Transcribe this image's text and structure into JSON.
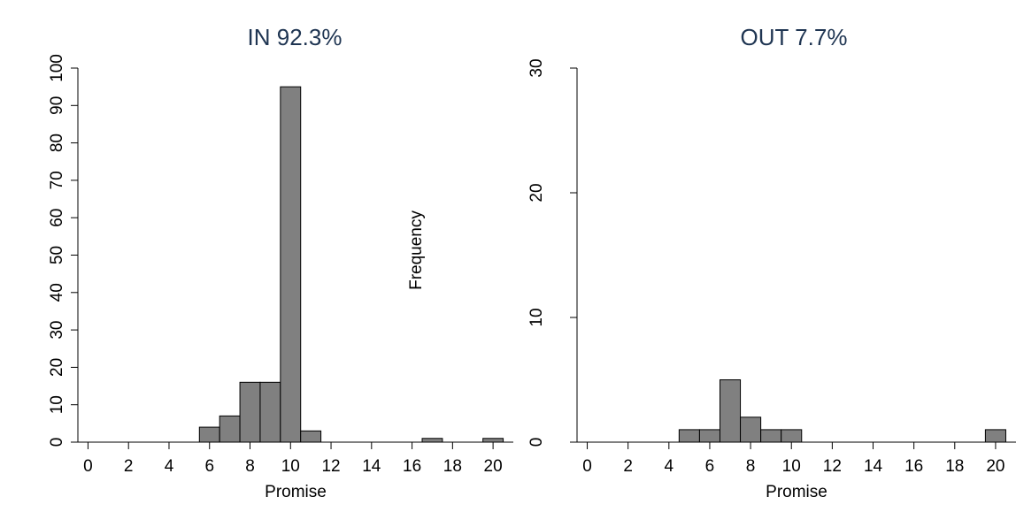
{
  "chart_data": [
    {
      "type": "bar",
      "title": "IN 92.3%",
      "xlabel": "Promise",
      "ylabel": "",
      "xlim": [
        -0.5,
        21
      ],
      "ylim": [
        0,
        100
      ],
      "xticks": [
        0,
        2,
        4,
        6,
        8,
        10,
        12,
        14,
        16,
        18,
        20
      ],
      "yticks": [
        0,
        10,
        20,
        30,
        40,
        50,
        60,
        70,
        80,
        90,
        100
      ],
      "bin_width": 1,
      "bins": [
        {
          "x0": 5.5,
          "value": 4
        },
        {
          "x0": 6.5,
          "value": 7
        },
        {
          "x0": 7.5,
          "value": 16
        },
        {
          "x0": 8.5,
          "value": 16
        },
        {
          "x0": 9.5,
          "value": 95
        },
        {
          "x0": 10.5,
          "value": 3
        },
        {
          "x0": 16.5,
          "value": 1
        },
        {
          "x0": 19.5,
          "value": 1
        }
      ]
    },
    {
      "type": "bar",
      "title": "OUT 7.7%",
      "xlabel": "Promise",
      "ylabel": "",
      "xlim": [
        -0.5,
        21
      ],
      "ylim": [
        0,
        30
      ],
      "xticks": [
        0,
        2,
        4,
        6,
        8,
        10,
        12,
        14,
        16,
        18,
        20
      ],
      "yticks": [
        0,
        10,
        20,
        30
      ],
      "bin_width": 1,
      "bins": [
        {
          "x0": 4.5,
          "value": 1
        },
        {
          "x0": 5.5,
          "value": 1
        },
        {
          "x0": 6.5,
          "value": 5
        },
        {
          "x0": 7.5,
          "value": 2
        },
        {
          "x0": 8.5,
          "value": 1
        },
        {
          "x0": 9.5,
          "value": 1
        },
        {
          "x0": 19.5,
          "value": 1
        }
      ]
    }
  ],
  "shared_ylabel": "Frequency"
}
